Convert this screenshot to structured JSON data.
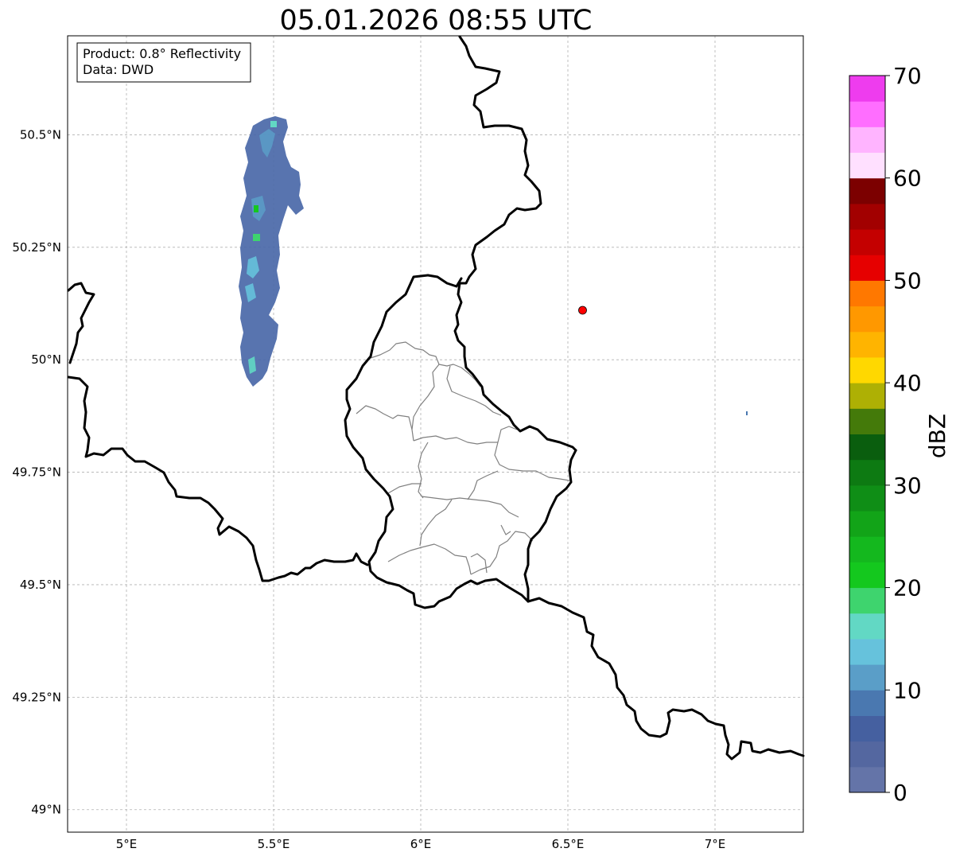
{
  "title": "05.01.2026 08:55 UTC",
  "info_box": {
    "line1": "Product: 0.8° Reflectivity",
    "line2": "Data: DWD"
  },
  "map": {
    "lon_range": [
      4.8,
      7.3
    ],
    "lat_range": [
      48.95,
      50.72
    ],
    "lon_ticks": [
      {
        "value": 5.0,
        "label": "5°E"
      },
      {
        "value": 5.5,
        "label": "5.5°E"
      },
      {
        "value": 6.0,
        "label": "6°E"
      },
      {
        "value": 6.5,
        "label": "6.5°E"
      },
      {
        "value": 7.0,
        "label": "7°E"
      }
    ],
    "lat_ticks": [
      {
        "value": 50.5,
        "label": "50.5°N"
      },
      {
        "value": 50.25,
        "label": "50.25°N"
      },
      {
        "value": 50.0,
        "label": "50°N"
      },
      {
        "value": 49.75,
        "label": "49.75°N"
      },
      {
        "value": 49.5,
        "label": "49.5°N"
      },
      {
        "value": 49.25,
        "label": "49.25°N"
      },
      {
        "value": 49.0,
        "label": "49°N"
      }
    ],
    "gridlines": true,
    "marker": {
      "lon": 6.55,
      "lat": 50.11,
      "color": "#ff0000"
    }
  },
  "colorbar": {
    "label": "dBZ",
    "min": 0,
    "max": 70,
    "step": 2.5,
    "ticks": [
      {
        "value": 0,
        "label": "0"
      },
      {
        "value": 10,
        "label": "10"
      },
      {
        "value": 20,
        "label": "20"
      },
      {
        "value": 30,
        "label": "30"
      },
      {
        "value": 40,
        "label": "40"
      },
      {
        "value": 50,
        "label": "50"
      },
      {
        "value": 60,
        "label": "60"
      },
      {
        "value": 70,
        "label": "70"
      }
    ],
    "colors": [
      "#6474a8",
      "#5467a0",
      "#4560a0",
      "#4a78b0",
      "#5a9ec8",
      "#66c2dc",
      "#62d8c4",
      "#3ed46e",
      "#14c81e",
      "#14b81e",
      "#12a418",
      "#0f8e16",
      "#0d7a12",
      "#0a5e0e",
      "#447a0a",
      "#aeb004",
      "#ffd800",
      "#ffb400",
      "#ff9800",
      "#ff7800",
      "#e60000",
      "#c40000",
      "#a20000",
      "#7c0000",
      "#ffe0ff",
      "#ffb4ff",
      "#ff6eff",
      "#ee3cee"
    ]
  }
}
